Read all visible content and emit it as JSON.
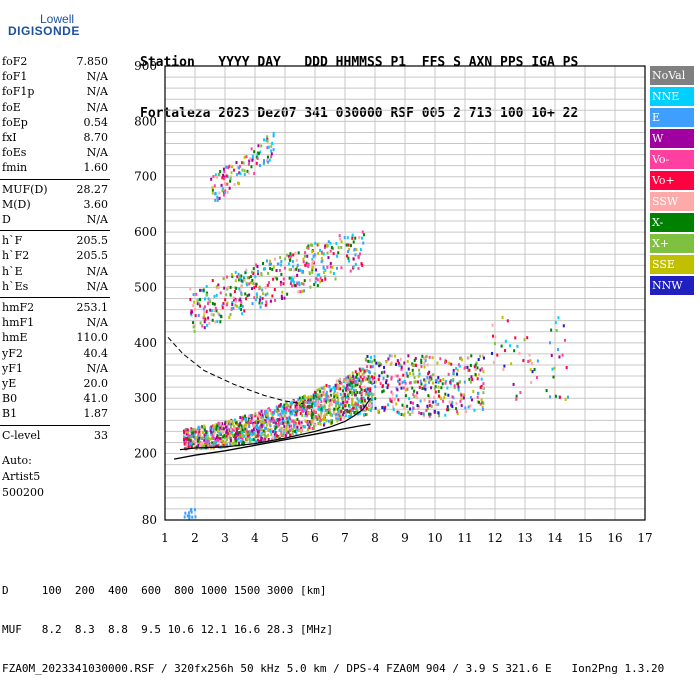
{
  "logo": {
    "brand": "Lowell",
    "product": "DIGISONDE"
  },
  "header": {
    "line1": "Station   YYYY DAY   DDD HHMMSS P1  FFS S AXN PPS IGA PS",
    "line2": "Fortaleza 2023 Dez07 341 030000 RSF 005 2 713 100 10+ 22"
  },
  "params": [
    {
      "name": "foF2",
      "value": "7.850"
    },
    {
      "name": "foF1",
      "value": "N/A"
    },
    {
      "name": "foF1p",
      "value": "N/A"
    },
    {
      "name": "foE",
      "value": "N/A"
    },
    {
      "name": "foEp",
      "value": "0.54"
    },
    {
      "name": "fxI",
      "value": "8.70"
    },
    {
      "name": "foEs",
      "value": "N/A"
    },
    {
      "name": "fmin",
      "value": "1.60"
    },
    {
      "name": "MUF(D)",
      "value": "28.27"
    },
    {
      "name": "M(D)",
      "value": "3.60"
    },
    {
      "name": "D",
      "value": "N/A"
    },
    {
      "name": "h`F",
      "value": "205.5"
    },
    {
      "name": "h`F2",
      "value": "205.5"
    },
    {
      "name": "h`E",
      "value": "N/A"
    },
    {
      "name": "h`Es",
      "value": "N/A"
    },
    {
      "name": "hmF2",
      "value": "253.1"
    },
    {
      "name": "hmF1",
      "value": "N/A"
    },
    {
      "name": "hmE",
      "value": "110.0"
    },
    {
      "name": "yF2",
      "value": "40.4"
    },
    {
      "name": "yF1",
      "value": "N/A"
    },
    {
      "name": "yE",
      "value": "20.0"
    },
    {
      "name": "B0",
      "value": "41.0"
    },
    {
      "name": "B1",
      "value": "1.87"
    },
    {
      "name": "C-level",
      "value": "33"
    }
  ],
  "auto": [
    "Auto:",
    "Artist5",
    "500200"
  ],
  "legend": [
    {
      "label": "NoVal",
      "color": "#808080"
    },
    {
      "label": "NNE",
      "color": "#00d0ff"
    },
    {
      "label": "E",
      "color": "#3f9fff"
    },
    {
      "label": "W",
      "color": "#a000a0"
    },
    {
      "label": "Vo-",
      "color": "#ff40a0"
    },
    {
      "label": "Vo+",
      "color": "#ff0040"
    },
    {
      "label": "SSW",
      "color": "#ffaaaa"
    },
    {
      "label": "X-",
      "color": "#008000"
    },
    {
      "label": "X+",
      "color": "#80c040"
    },
    {
      "label": "SSE",
      "color": "#c0c000"
    },
    {
      "label": "NNW",
      "color": "#2020c0"
    }
  ],
  "chart_data": {
    "type": "scatter",
    "xlabel": "",
    "ylabel": "",
    "xlim": [
      1,
      17
    ],
    "ylim": [
      80,
      900
    ],
    "x_ticks": [
      "1",
      "2",
      "3",
      "4",
      "5",
      "6",
      "7",
      "8",
      "9",
      "10",
      "11",
      "12",
      "13",
      "14",
      "15",
      "16",
      "17"
    ],
    "y_ticks": [
      "80",
      "200",
      "300",
      "400",
      "500",
      "600",
      "700",
      "800",
      "900"
    ],
    "profile": {
      "x": [
        1.3,
        2,
        3,
        4,
        5,
        6,
        7,
        7.5,
        7.85
      ],
      "y": [
        190,
        197,
        205,
        215,
        225,
        235,
        245,
        250,
        253
      ]
    },
    "profile_upper": {
      "x": [
        1.1,
        1.6,
        2.3,
        3.3,
        4.3,
        5,
        5.6
      ],
      "y": [
        410,
        380,
        350,
        325,
        305,
        295,
        290
      ]
    },
    "trace": {
      "x": [
        1.5,
        2,
        3,
        4,
        5,
        6,
        6.5,
        7,
        7.3,
        7.6,
        7.85
      ],
      "y": [
        207,
        210,
        212,
        218,
        228,
        240,
        248,
        258,
        268,
        280,
        300
      ]
    }
  },
  "bottom": {
    "line1": "D     100  200  400  600  800 1000 1500 3000 [km]",
    "line2": "MUF   8.2  8.3  8.8  9.5 10.6 12.1 16.6 28.3 [MHz]",
    "line3": "FZA0M_2023341030000.RSF / 320fx256h 50 kHz 5.0 km / DPS-4 FZA0M 904 / 3.9 S 321.6 E   Ion2Png 1.3.20"
  }
}
